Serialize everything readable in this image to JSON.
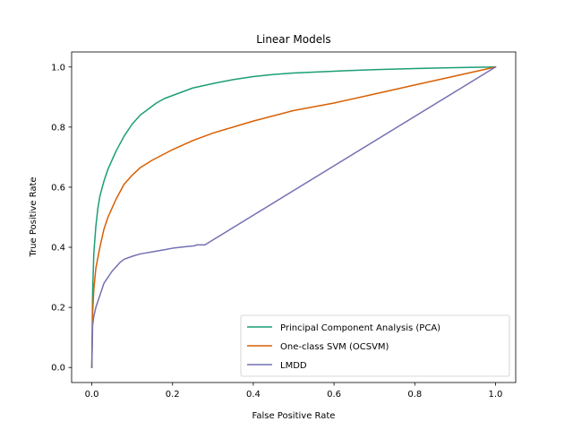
{
  "chart_data": {
    "type": "line",
    "title": "Linear Models",
    "xlabel": "False Positive Rate",
    "ylabel": "True Positive Rate",
    "xlim": [
      -0.05,
      1.05
    ],
    "ylim": [
      -0.05,
      1.05
    ],
    "xticks": [
      "0.0",
      "0.2",
      "0.4",
      "0.6",
      "0.8",
      "1.0"
    ],
    "yticks": [
      "0.0",
      "0.2",
      "0.4",
      "0.6",
      "0.8",
      "1.0"
    ],
    "grid": false,
    "legend_position": "bottom-right",
    "series": [
      {
        "name": "Principal Component Analysis (PCA)",
        "color": "#1b9e77",
        "x": [
          0,
          0.002,
          0.005,
          0.01,
          0.015,
          0.02,
          0.03,
          0.04,
          0.05,
          0.06,
          0.08,
          0.1,
          0.12,
          0.14,
          0.16,
          0.18,
          0.2,
          0.25,
          0.3,
          0.35,
          0.4,
          0.45,
          0.5,
          0.6,
          0.7,
          0.8,
          0.9,
          1.0
        ],
        "y": [
          0,
          0.25,
          0.38,
          0.47,
          0.53,
          0.57,
          0.62,
          0.66,
          0.69,
          0.72,
          0.77,
          0.81,
          0.84,
          0.86,
          0.88,
          0.895,
          0.905,
          0.93,
          0.945,
          0.958,
          0.968,
          0.975,
          0.98,
          0.986,
          0.991,
          0.995,
          0.998,
          1.0
        ]
      },
      {
        "name": "One-class SVM (OCSVM)",
        "color": "#d95f02",
        "x": [
          0,
          0.002,
          0.005,
          0.01,
          0.02,
          0.03,
          0.04,
          0.05,
          0.06,
          0.08,
          0.1,
          0.12,
          0.15,
          0.2,
          0.25,
          0.3,
          0.35,
          0.4,
          0.5,
          0.6,
          0.7,
          0.8,
          0.9,
          1.0
        ],
        "y": [
          0,
          0.18,
          0.26,
          0.33,
          0.4,
          0.46,
          0.5,
          0.53,
          0.56,
          0.61,
          0.64,
          0.665,
          0.69,
          0.725,
          0.755,
          0.78,
          0.8,
          0.82,
          0.855,
          0.88,
          0.91,
          0.94,
          0.97,
          1.0
        ]
      },
      {
        "name": "LMDD",
        "color": "#7570b3",
        "x": [
          0,
          0.002,
          0.005,
          0.01,
          0.02,
          0.03,
          0.04,
          0.05,
          0.06,
          0.07,
          0.08,
          0.1,
          0.12,
          0.15,
          0.18,
          0.2,
          0.24,
          0.255,
          0.26,
          0.28,
          1.0
        ],
        "y": [
          0,
          0.14,
          0.17,
          0.2,
          0.24,
          0.28,
          0.3,
          0.32,
          0.335,
          0.35,
          0.36,
          0.37,
          0.378,
          0.385,
          0.392,
          0.397,
          0.403,
          0.405,
          0.408,
          0.408,
          1.0
        ]
      }
    ]
  }
}
